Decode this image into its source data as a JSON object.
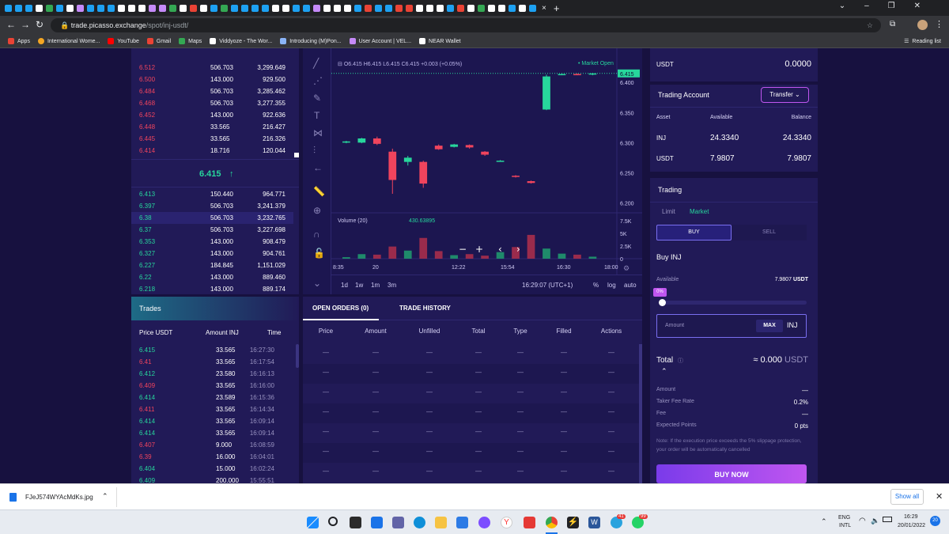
{
  "browser": {
    "url_host": "trade.picasso.exchange",
    "url_path": "/spot/inj-usdt/",
    "bookmarks": [
      "Apps",
      "International Wome...",
      "YouTube",
      "Gmail",
      "Maps",
      "Viddyoze - The Wor...",
      "Introducing (M)Pon...",
      "User Account | VEL...",
      "NEAR Wallet"
    ],
    "reading_list": "Reading list"
  },
  "orderbook": {
    "asks": [
      {
        "price": "6.512",
        "amount": "506.703",
        "total": "3,299.649"
      },
      {
        "price": "6.500",
        "amount": "143.000",
        "total": "929.500"
      },
      {
        "price": "6.484",
        "amount": "506.703",
        "total": "3,285.462"
      },
      {
        "price": "6.468",
        "amount": "506.703",
        "total": "3,277.355"
      },
      {
        "price": "6.452",
        "amount": "143.000",
        "total": "922.636"
      },
      {
        "price": "6.448",
        "amount": "33.565",
        "total": "216.427"
      },
      {
        "price": "6.445",
        "amount": "33.565",
        "total": "216.326"
      },
      {
        "price": "6.414",
        "amount": "18.716",
        "total": "120.044"
      }
    ],
    "last_price": "6.415",
    "last_arrow": "↑",
    "bids": [
      {
        "price": "6.413",
        "amount": "150.440",
        "total": "964.771"
      },
      {
        "price": "6.397",
        "amount": "506.703",
        "total": "3,241.379"
      },
      {
        "price": "6.38",
        "amount": "506.703",
        "total": "3,232.765"
      },
      {
        "price": "6.37",
        "amount": "506.703",
        "total": "3,227.698"
      },
      {
        "price": "6.353",
        "amount": "143.000",
        "total": "908.479"
      },
      {
        "price": "6.327",
        "amount": "143.000",
        "total": "904.761"
      },
      {
        "price": "6.227",
        "amount": "184.845",
        "total": "1,151.029"
      },
      {
        "price": "6.22",
        "amount": "143.000",
        "total": "889.460"
      },
      {
        "price": "6.218",
        "amount": "143.000",
        "total": "889.174"
      }
    ]
  },
  "chart": {
    "ohlc_label": "O6.415  H6.415  L6.415  C6.415  +0.003 (+0.05%)",
    "market_status": "• Market Open",
    "current_price_tag": "6.415",
    "price_ticks": [
      "6.400",
      "6.350",
      "6.300",
      "6.250",
      "6.200"
    ],
    "volume_label": "Volume (20)",
    "volume_value": "430.63895",
    "volume_ticks": [
      "7.5K",
      "5K",
      "2.5K",
      "0"
    ],
    "time_ticks": [
      "8:35",
      "20",
      "12:22",
      "15:54",
      "16:30",
      "18:00"
    ],
    "ranges": [
      "1d",
      "1w",
      "1m",
      "3m"
    ],
    "clock": "16:29:07 (UTC+1)",
    "scale_opts": [
      "%",
      "log",
      "auto"
    ]
  },
  "chart_data": {
    "type": "candlestick",
    "candles": [
      {
        "o": 6.3,
        "c": 6.302,
        "h": 6.303,
        "l": 6.299
      },
      {
        "o": 6.3,
        "c": 6.307,
        "h": 6.308,
        "l": 6.299
      },
      {
        "o": 6.307,
        "c": 6.298,
        "h": 6.31,
        "l": 6.296
      },
      {
        "o": 6.285,
        "c": 6.238,
        "h": 6.29,
        "l": 6.215
      },
      {
        "o": 6.268,
        "c": 6.275,
        "h": 6.278,
        "l": 6.262
      },
      {
        "o": 6.268,
        "c": 6.232,
        "h": 6.27,
        "l": 6.225
      },
      {
        "o": 6.295,
        "c": 6.289,
        "h": 6.297,
        "l": 6.288
      },
      {
        "o": 6.293,
        "c": 6.297,
        "h": 6.298,
        "l": 6.292
      },
      {
        "o": 6.296,
        "c": 6.292,
        "h": 6.297,
        "l": 6.29
      },
      {
        "o": 6.285,
        "c": 6.28,
        "h": 6.286,
        "l": 6.278
      },
      {
        "o": 6.27,
        "c": 6.27,
        "h": 6.271,
        "l": 6.269
      },
      {
        "o": 6.245,
        "c": 6.243,
        "h": 6.246,
        "l": 6.242
      },
      {
        "o": 6.236,
        "c": 6.233,
        "h": 6.237,
        "l": 6.232
      },
      {
        "o": 6.355,
        "c": 6.41,
        "h": 6.413,
        "l": 6.354
      },
      {
        "o": 6.413,
        "c": 6.414,
        "h": 6.415,
        "l": 6.412
      },
      {
        "o": 6.414,
        "c": 6.413,
        "h": 6.415,
        "l": 6.412
      },
      {
        "o": 6.413,
        "c": 6.415,
        "h": 6.416,
        "l": 6.412
      }
    ],
    "volumes": [
      300,
      900,
      800,
      2400,
      1600,
      4100,
      1500,
      700,
      900,
      600,
      1300,
      2300,
      4700,
      2000,
      1000,
      800,
      400
    ],
    "ylim": [
      6.19,
      6.42
    ],
    "vol_max": 7500
  },
  "trades": {
    "title": "Trades",
    "headers": [
      "Price USDT",
      "Amount INJ",
      "Time"
    ],
    "rows": [
      {
        "p": "6.415",
        "a": "33.565",
        "t": "16:27:30",
        "side": "buy"
      },
      {
        "p": "6.41",
        "a": "33.565",
        "t": "16:17:54",
        "side": "sell"
      },
      {
        "p": "6.412",
        "a": "23.580",
        "t": "16:16:13",
        "side": "buy"
      },
      {
        "p": "6.409",
        "a": "33.565",
        "t": "16:16:00",
        "side": "sell"
      },
      {
        "p": "6.414",
        "a": "23.589",
        "t": "16:15:36",
        "side": "buy"
      },
      {
        "p": "6.411",
        "a": "33.565",
        "t": "16:14:34",
        "side": "sell"
      },
      {
        "p": "6.414",
        "a": "33.565",
        "t": "16:09:14",
        "side": "buy"
      },
      {
        "p": "6.414",
        "a": "33.565",
        "t": "16:09:14",
        "side": "buy"
      },
      {
        "p": "6.407",
        "a": "9.000",
        "t": "16:08:59",
        "side": "sell"
      },
      {
        "p": "6.39",
        "a": "16.000",
        "t": "16:04:01",
        "side": "sell"
      },
      {
        "p": "6.404",
        "a": "15.000",
        "t": "16:02:24",
        "side": "buy"
      },
      {
        "p": "6.409",
        "a": "200.000",
        "t": "15:55:51",
        "side": "buy"
      }
    ]
  },
  "orders": {
    "tab_open": "OPEN ORDERS (0)",
    "tab_history": "TRADE HISTORY",
    "headers": [
      "Price",
      "Amount",
      "Unfilled",
      "Total",
      "Type",
      "Filled",
      "Actions"
    ],
    "empty": "—"
  },
  "account": {
    "usdt_label": "USDT",
    "usdt_value": "0.0000",
    "title": "Trading Account",
    "transfer": "Transfer",
    "headers": [
      "Asset",
      "Available",
      "Balance"
    ],
    "rows": [
      {
        "asset": "INJ",
        "available": "24.3340",
        "balance": "24.3340"
      },
      {
        "asset": "USDT",
        "available": "7.9807",
        "balance": "7.9807"
      }
    ]
  },
  "trading": {
    "title": "Trading",
    "limit": "Limit",
    "market": "Market",
    "buy": "BUY",
    "sell": "SELL",
    "heading": "Buy INJ",
    "available_label": "Available",
    "available_value": "7.9807",
    "available_unit": "USDT",
    "slider_pct": "0%",
    "amount_placeholder": "Amount",
    "max": "MAX",
    "unit": "INJ",
    "total_label": "Total",
    "total_value": "≈ 0.000",
    "total_unit": "USDT",
    "details": [
      {
        "label": "Amount",
        "value": "—"
      },
      {
        "label": "Taker Fee Rate",
        "value": "0.2%"
      },
      {
        "label": "Fee",
        "value": "—"
      },
      {
        "label": "Expected Points",
        "value": "0",
        "unit": "pts"
      }
    ],
    "note": "Note: If the execution price exceeds the 5% slippage protection, your order will be automatically cancelled",
    "buy_now": "BUY NOW"
  },
  "download": {
    "file": "FJeJ574WYAcMdKs.jpg",
    "show_all": "Show all"
  },
  "taskbar": {
    "lang1": "ENG",
    "lang2": "INTL",
    "time": "16:29",
    "date": "20/01/2022",
    "badge": "20",
    "badge_a": "41",
    "badge_b": "99"
  }
}
